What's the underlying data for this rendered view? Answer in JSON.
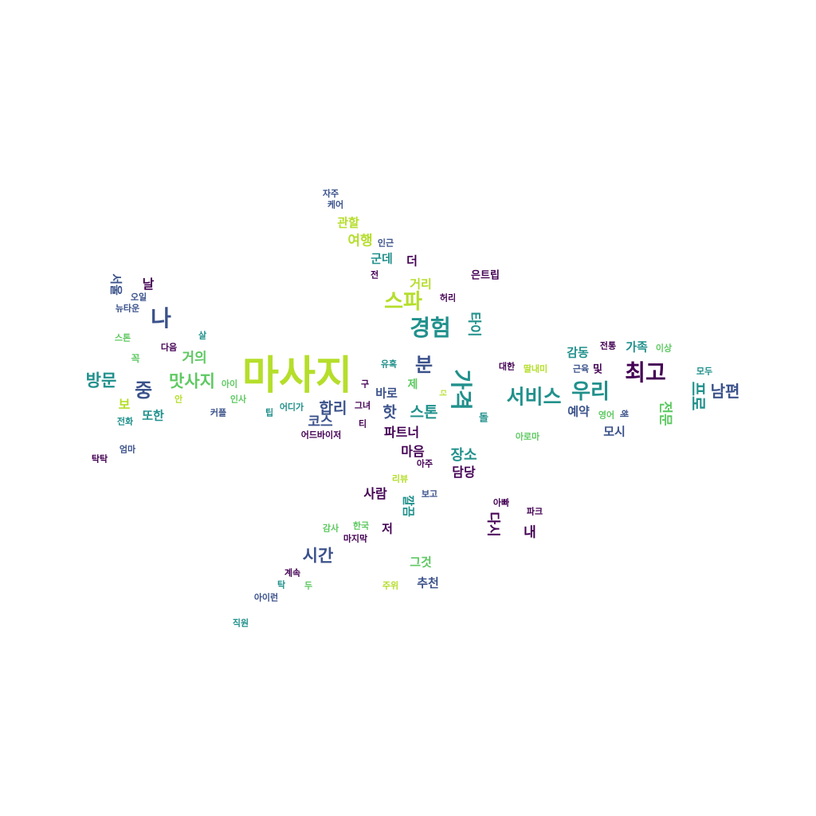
{
  "palette": {
    "purple": "#440154",
    "indigo": "#3b528b",
    "teal": "#21918c",
    "green": "#5ec962",
    "lime": "#b5de2b"
  },
  "words": [
    {
      "text": "마사지",
      "color": "lime",
      "weight": 100
    },
    {
      "text": "최고",
      "color": "purple",
      "weight": 60
    },
    {
      "text": "경험",
      "color": "teal",
      "weight": 60
    },
    {
      "text": "나",
      "color": "indigo",
      "weight": 60
    },
    {
      "text": "가격",
      "color": "teal",
      "weight": 58
    },
    {
      "text": "우리",
      "color": "teal",
      "weight": 55
    },
    {
      "text": "스파",
      "color": "lime",
      "weight": 52
    },
    {
      "text": "서비스",
      "color": "teal",
      "weight": 52
    },
    {
      "text": "분",
      "color": "indigo",
      "weight": 50
    },
    {
      "text": "중",
      "color": "indigo",
      "weight": 50
    },
    {
      "text": "방문",
      "color": "teal",
      "weight": 45
    },
    {
      "text": "맛사지",
      "color": "green",
      "weight": 45
    },
    {
      "text": "시간",
      "color": "indigo",
      "weight": 45
    },
    {
      "text": "남편",
      "color": "indigo",
      "weight": 42
    },
    {
      "text": "프로",
      "color": "teal",
      "weight": 42
    },
    {
      "text": "합리",
      "color": "indigo",
      "weight": 42
    },
    {
      "text": "스톤",
      "color": "teal",
      "weight": 40
    },
    {
      "text": "핫",
      "color": "indigo",
      "weight": 40
    },
    {
      "text": "장소",
      "color": "teal",
      "weight": 35
    },
    {
      "text": "여행",
      "color": "lime",
      "weight": 35
    },
    {
      "text": "타이",
      "color": "teal",
      "weight": 35
    },
    {
      "text": "거의",
      "color": "green",
      "weight": 35
    },
    {
      "text": "전문",
      "color": "green",
      "weight": 35
    },
    {
      "text": "내",
      "color": "purple",
      "weight": 35
    },
    {
      "text": "다시",
      "color": "purple",
      "weight": 35
    },
    {
      "text": "코스",
      "color": "indigo",
      "weight": 33
    },
    {
      "text": "마음",
      "color": "purple",
      "weight": 30
    },
    {
      "text": "담당",
      "color": "purple",
      "weight": 30
    },
    {
      "text": "사람",
      "color": "purple",
      "weight": 30
    },
    {
      "text": "파트너",
      "color": "purple",
      "weight": 30
    },
    {
      "text": "추천",
      "color": "indigo",
      "weight": 30
    },
    {
      "text": "그것",
      "color": "green",
      "weight": 30
    },
    {
      "text": "바로",
      "color": "indigo",
      "weight": 30
    },
    {
      "text": "감동",
      "color": "teal",
      "weight": 30
    },
    {
      "text": "가족",
      "color": "teal",
      "weight": 30
    },
    {
      "text": "관할",
      "color": "lime",
      "weight": 30
    },
    {
      "text": "거리",
      "color": "lime",
      "weight": 30
    },
    {
      "text": "군데",
      "color": "teal",
      "weight": 30
    },
    {
      "text": "또한",
      "color": "teal",
      "weight": 30
    },
    {
      "text": "모시",
      "color": "indigo",
      "weight": 30
    },
    {
      "text": "예약",
      "color": "indigo",
      "weight": 28
    },
    {
      "text": "저",
      "color": "purple",
      "weight": 30
    },
    {
      "text": "날",
      "color": "purple",
      "weight": 30
    },
    {
      "text": "보",
      "color": "lime",
      "weight": 30
    },
    {
      "text": "더",
      "color": "purple",
      "weight": 30
    },
    {
      "text": "서울",
      "color": "indigo",
      "weight": 30
    },
    {
      "text": "제",
      "color": "green",
      "weight": 28
    },
    {
      "text": "및",
      "color": "purple",
      "weight": 28
    },
    {
      "text": "깔끔",
      "color": "teal",
      "weight": 28
    },
    {
      "text": "은트립",
      "color": "purple",
      "weight": 22
    },
    {
      "text": "허리",
      "color": "purple",
      "weight": 20
    },
    {
      "text": "전",
      "color": "purple",
      "weight": 20
    },
    {
      "text": "인근",
      "color": "indigo",
      "weight": 20
    },
    {
      "text": "자주",
      "color": "indigo",
      "weight": 20
    },
    {
      "text": "케어",
      "color": "indigo",
      "weight": 20
    },
    {
      "text": "뉴타운",
      "color": "indigo",
      "weight": 20
    },
    {
      "text": "오일",
      "color": "indigo",
      "weight": 20
    },
    {
      "text": "살",
      "color": "teal",
      "weight": 20
    },
    {
      "text": "스톤",
      "color": "green",
      "weight": 20
    },
    {
      "text": "꼭",
      "color": "green",
      "weight": 22
    },
    {
      "text": "다음",
      "color": "purple",
      "weight": 20
    },
    {
      "text": "아이",
      "color": "green",
      "weight": 20
    },
    {
      "text": "안",
      "color": "lime",
      "weight": 20
    },
    {
      "text": "인사",
      "color": "green",
      "weight": 20
    },
    {
      "text": "커플",
      "color": "indigo",
      "weight": 20
    },
    {
      "text": "전화",
      "color": "teal",
      "weight": 20
    },
    {
      "text": "팁",
      "color": "teal",
      "weight": 20
    },
    {
      "text": "어디가",
      "color": "teal",
      "weight": 20
    },
    {
      "text": "그녀",
      "color": "purple",
      "weight": 20
    },
    {
      "text": "구",
      "color": "purple",
      "weight": 20
    },
    {
      "text": "유혹",
      "color": "teal",
      "weight": 20
    },
    {
      "text": "티",
      "color": "purple",
      "weight": 20
    },
    {
      "text": "어드바이저",
      "color": "purple",
      "weight": 20
    },
    {
      "text": "더",
      "color": "lime",
      "weight": 18
    },
    {
      "text": "돌",
      "color": "teal",
      "weight": 22
    },
    {
      "text": "대한",
      "color": "purple",
      "weight": 20
    },
    {
      "text": "딸내미",
      "color": "lime",
      "weight": 20
    },
    {
      "text": "근육",
      "color": "indigo",
      "weight": 20
    },
    {
      "text": "전통",
      "color": "purple",
      "weight": 20
    },
    {
      "text": "이상",
      "color": "green",
      "weight": 20
    },
    {
      "text": "모두",
      "color": "teal",
      "weight": 20
    },
    {
      "text": "영어",
      "color": "green",
      "weight": 20
    },
    {
      "text": "해",
      "color": "indigo",
      "weight": 18
    },
    {
      "text": "아로마",
      "color": "green",
      "weight": 20
    },
    {
      "text": "엄마",
      "color": "indigo",
      "weight": 20
    },
    {
      "text": "탁탁",
      "color": "purple",
      "weight": 20
    },
    {
      "text": "아주",
      "color": "purple",
      "weight": 20
    },
    {
      "text": "리뷰",
      "color": "lime",
      "weight": 20
    },
    {
      "text": "보고",
      "color": "indigo",
      "weight": 20
    },
    {
      "text": "아빠",
      "color": "purple",
      "weight": 20
    },
    {
      "text": "파크",
      "color": "purple",
      "weight": 20
    },
    {
      "text": "감사",
      "color": "green",
      "weight": 20
    },
    {
      "text": "한국",
      "color": "green",
      "weight": 20
    },
    {
      "text": "마지막",
      "color": "purple",
      "weight": 20
    },
    {
      "text": "계속",
      "color": "purple",
      "weight": 20
    },
    {
      "text": "탁",
      "color": "teal",
      "weight": 20
    },
    {
      "text": "두",
      "color": "green",
      "weight": 20
    },
    {
      "text": "주위",
      "color": "lime",
      "weight": 20
    },
    {
      "text": "아이런",
      "color": "indigo",
      "weight": 20
    },
    {
      "text": "직원",
      "color": "teal",
      "weight": 20
    }
  ]
}
